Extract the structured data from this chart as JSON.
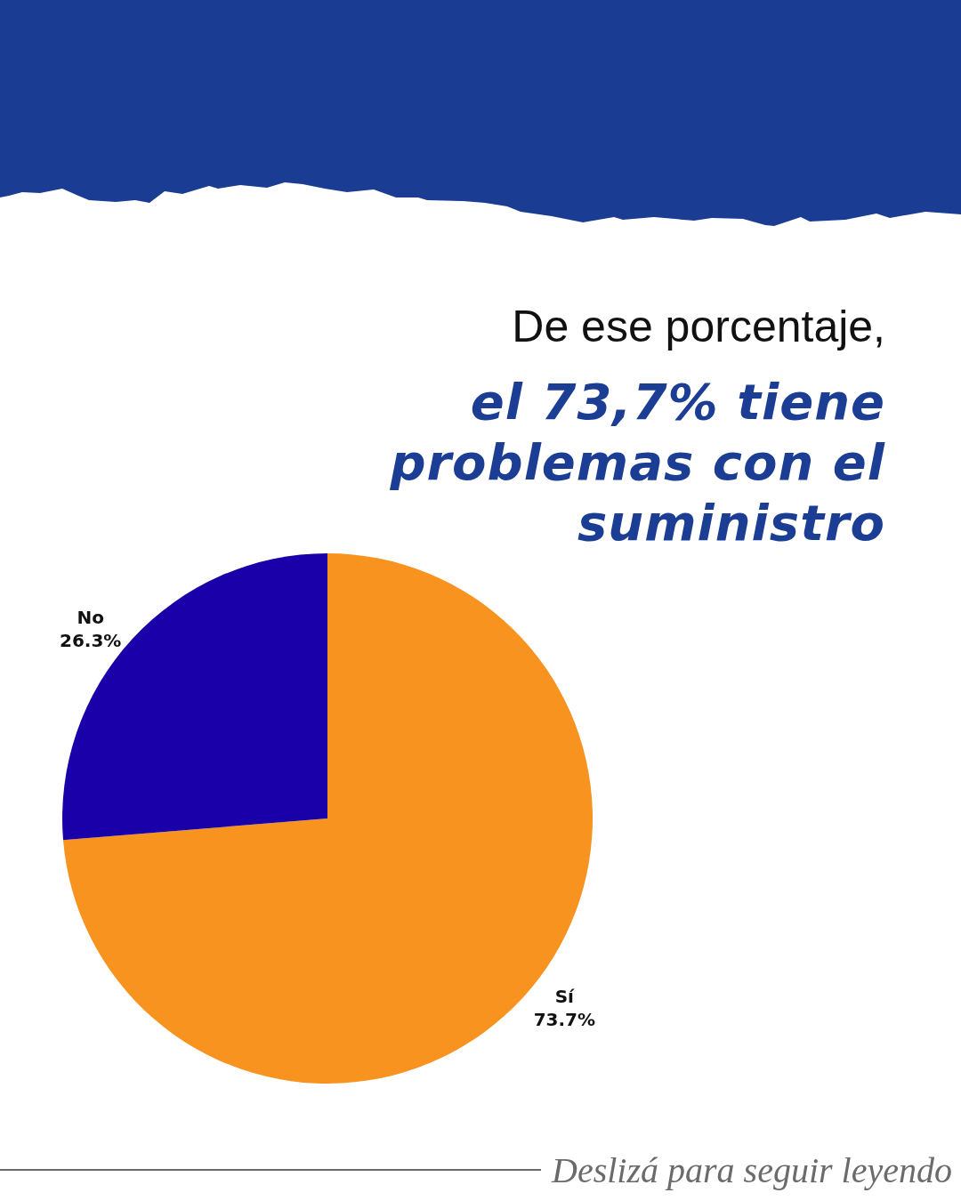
{
  "chart_data": {
    "type": "pie",
    "title": "De ese porcentaje,",
    "subtitle": "el 73,7% tiene problemas con el suministro",
    "categories": [
      "Sí",
      "No"
    ],
    "values": [
      73.7,
      26.3
    ],
    "colors": [
      "#f7931e",
      "#1a00a8"
    ],
    "value_labels": [
      "73.7%",
      "26.3%"
    ],
    "annotations": [
      "Deslizá para seguir leyendo"
    ]
  }
}
